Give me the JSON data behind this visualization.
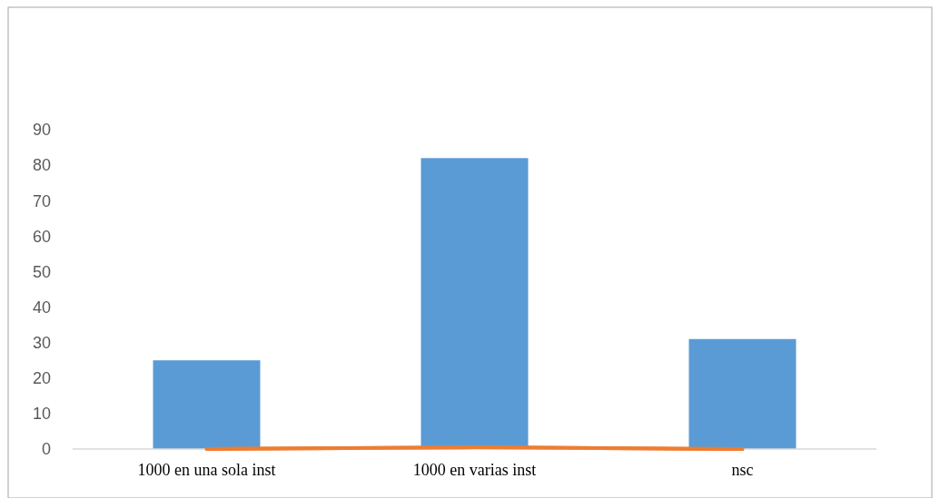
{
  "chart_data": {
    "type": "bar",
    "categories": [
      "1000 en una sola inst",
      "1000 en varias inst",
      "nsc"
    ],
    "series": [
      {
        "color": "#5b9bd5",
        "values": [
          25,
          82,
          31
        ]
      },
      {
        "type": "line",
        "color": "#ed7d31",
        "values": [
          0,
          0.5,
          0
        ]
      }
    ],
    "ylim": [
      0,
      90
    ],
    "yticks": [
      0,
      10,
      20,
      30,
      40,
      50,
      60,
      70,
      80,
      90
    ],
    "grid": false
  }
}
